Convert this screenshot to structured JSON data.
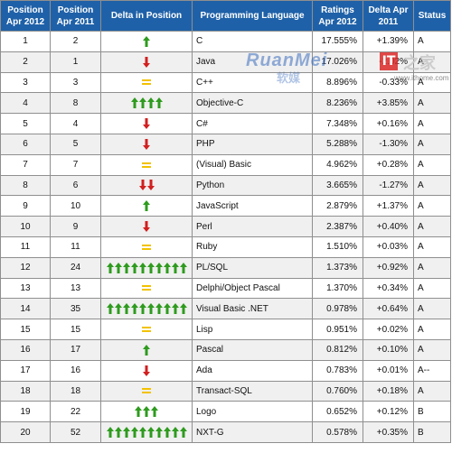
{
  "headers": {
    "pos2012": "Position Apr 2012",
    "pos2011": "Position Apr 2011",
    "delta_pos": "Delta in Position",
    "language": "Programming Language",
    "ratings": "Ratings Apr 2012",
    "delta": "Delta Apr 2011",
    "status": "Status"
  },
  "colors": {
    "header_bg": "#1f61a8",
    "up_arrow": "#2e9b1e",
    "down_arrow": "#d21f1f",
    "equal": "#f2c200"
  },
  "rows": [
    {
      "p2012": "1",
      "p2011": "2",
      "dir": "up",
      "count": 1,
      "lang": "C",
      "rating": "17.555%",
      "delta": "+1.39%",
      "status": "A"
    },
    {
      "p2012": "2",
      "p2011": "1",
      "dir": "down",
      "count": 1,
      "lang": "Java",
      "rating": "17.026%",
      "delta": "-2.02%",
      "status": "A"
    },
    {
      "p2012": "3",
      "p2011": "3",
      "dir": "eq",
      "count": 1,
      "lang": "C++",
      "rating": "8.896%",
      "delta": "-0.33%",
      "status": "A"
    },
    {
      "p2012": "4",
      "p2011": "8",
      "dir": "up",
      "count": 4,
      "lang": "Objective-C",
      "rating": "8.236%",
      "delta": "+3.85%",
      "status": "A"
    },
    {
      "p2012": "5",
      "p2011": "4",
      "dir": "down",
      "count": 1,
      "lang": "C#",
      "rating": "7.348%",
      "delta": "+0.16%",
      "status": "A"
    },
    {
      "p2012": "6",
      "p2011": "5",
      "dir": "down",
      "count": 1,
      "lang": "PHP",
      "rating": "5.288%",
      "delta": "-1.30%",
      "status": "A"
    },
    {
      "p2012": "7",
      "p2011": "7",
      "dir": "eq",
      "count": 1,
      "lang": "(Visual) Basic",
      "rating": "4.962%",
      "delta": "+0.28%",
      "status": "A"
    },
    {
      "p2012": "8",
      "p2011": "6",
      "dir": "down",
      "count": 2,
      "lang": "Python",
      "rating": "3.665%",
      "delta": "-1.27%",
      "status": "A"
    },
    {
      "p2012": "9",
      "p2011": "10",
      "dir": "up",
      "count": 1,
      "lang": "JavaScript",
      "rating": "2.879%",
      "delta": "+1.37%",
      "status": "A"
    },
    {
      "p2012": "10",
      "p2011": "9",
      "dir": "down",
      "count": 1,
      "lang": "Perl",
      "rating": "2.387%",
      "delta": "+0.40%",
      "status": "A"
    },
    {
      "p2012": "11",
      "p2011": "11",
      "dir": "eq",
      "count": 1,
      "lang": "Ruby",
      "rating": "1.510%",
      "delta": "+0.03%",
      "status": "A"
    },
    {
      "p2012": "12",
      "p2011": "24",
      "dir": "up",
      "count": 10,
      "lang": "PL/SQL",
      "rating": "1.373%",
      "delta": "+0.92%",
      "status": "A"
    },
    {
      "p2012": "13",
      "p2011": "13",
      "dir": "eq",
      "count": 1,
      "lang": "Delphi/Object Pascal",
      "rating": "1.370%",
      "delta": "+0.34%",
      "status": "A"
    },
    {
      "p2012": "14",
      "p2011": "35",
      "dir": "up",
      "count": 10,
      "lang": "Visual Basic .NET",
      "rating": "0.978%",
      "delta": "+0.64%",
      "status": "A"
    },
    {
      "p2012": "15",
      "p2011": "15",
      "dir": "eq",
      "count": 1,
      "lang": "Lisp",
      "rating": "0.951%",
      "delta": "+0.02%",
      "status": "A"
    },
    {
      "p2012": "16",
      "p2011": "17",
      "dir": "up",
      "count": 1,
      "lang": "Pascal",
      "rating": "0.812%",
      "delta": "+0.10%",
      "status": "A"
    },
    {
      "p2012": "17",
      "p2011": "16",
      "dir": "down",
      "count": 1,
      "lang": "Ada",
      "rating": "0.783%",
      "delta": "+0.01%",
      "status": "A--"
    },
    {
      "p2012": "18",
      "p2011": "18",
      "dir": "eq",
      "count": 1,
      "lang": "Transact-SQL",
      "rating": "0.760%",
      "delta": "+0.18%",
      "status": "A"
    },
    {
      "p2012": "19",
      "p2011": "22",
      "dir": "up",
      "count": 3,
      "lang": "Logo",
      "rating": "0.652%",
      "delta": "+0.12%",
      "status": "B"
    },
    {
      "p2012": "20",
      "p2011": "52",
      "dir": "up",
      "count": 10,
      "lang": "NXT-G",
      "rating": "0.578%",
      "delta": "+0.35%",
      "status": "B"
    }
  ],
  "watermark": {
    "brand_en": "RuanMei",
    "brand_cn": "软媒",
    "logo_glyph": "IT",
    "url": "www.ithome.com",
    "side_glyph": "之家"
  }
}
